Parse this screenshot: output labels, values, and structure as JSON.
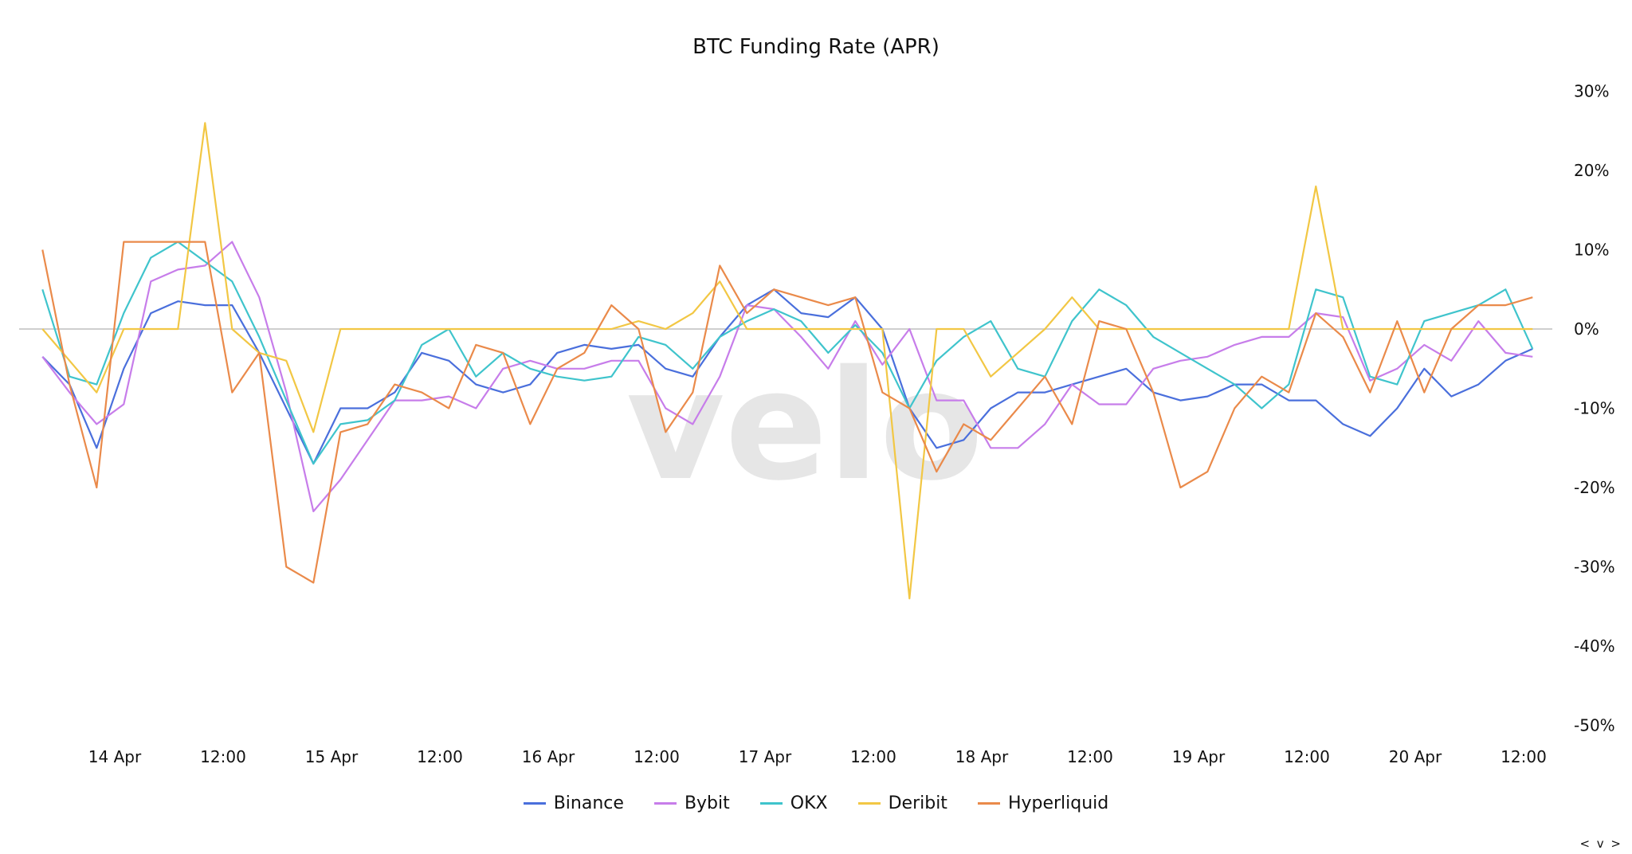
{
  "chart_data": {
    "type": "line",
    "title": "BTC Funding Rate (APR)",
    "watermark": "velo",
    "y_unit": "%",
    "ylim": [
      -50,
      30
    ],
    "y_ticks": [
      "30%",
      "20%",
      "10%",
      "0%",
      "-10%",
      "-20%",
      "-30%",
      "-40%",
      "-50%"
    ],
    "y_tick_values": [
      30,
      20,
      10,
      0,
      -10,
      -20,
      -30,
      -40,
      -50
    ],
    "y_axis_position": "right",
    "x_ticks": [
      {
        "label": "14 Apr",
        "t": "04-14 00:00"
      },
      {
        "label": "12:00",
        "t": "04-14 12:00"
      },
      {
        "label": "15 Apr",
        "t": "04-15 00:00"
      },
      {
        "label": "12:00",
        "t": "04-15 12:00"
      },
      {
        "label": "16 Apr",
        "t": "04-16 00:00"
      },
      {
        "label": "12:00",
        "t": "04-16 12:00"
      },
      {
        "label": "17 Apr",
        "t": "04-17 00:00"
      },
      {
        "label": "12:00",
        "t": "04-17 12:00"
      },
      {
        "label": "18 Apr",
        "t": "04-18 00:00"
      },
      {
        "label": "12:00",
        "t": "04-18 12:00"
      },
      {
        "label": "19 Apr",
        "t": "04-19 00:00"
      },
      {
        "label": "12:00",
        "t": "04-19 12:00"
      },
      {
        "label": "20 Apr",
        "t": "04-20 00:00"
      },
      {
        "label": "12:00",
        "t": "04-20 12:00"
      }
    ],
    "grid": "zero line only",
    "legend_position": "bottom",
    "x": [
      "04-13 16:00",
      "04-13 19:00",
      "04-13 22:00",
      "04-14 01:00",
      "04-14 04:00",
      "04-14 07:00",
      "04-14 10:00",
      "04-14 13:00",
      "04-14 16:00",
      "04-14 19:00",
      "04-14 22:00",
      "04-15 01:00",
      "04-15 04:00",
      "04-15 07:00",
      "04-15 10:00",
      "04-15 13:00",
      "04-15 16:00",
      "04-15 19:00",
      "04-15 22:00",
      "04-16 01:00",
      "04-16 04:00",
      "04-16 07:00",
      "04-16 10:00",
      "04-16 13:00",
      "04-16 16:00",
      "04-16 19:00",
      "04-16 22:00",
      "04-17 01:00",
      "04-17 04:00",
      "04-17 07:00",
      "04-17 10:00",
      "04-17 13:00",
      "04-17 16:00",
      "04-17 19:00",
      "04-17 22:00",
      "04-18 01:00",
      "04-18 04:00",
      "04-18 07:00",
      "04-18 10:00",
      "04-18 13:00",
      "04-18 16:00",
      "04-18 19:00",
      "04-18 22:00",
      "04-19 01:00",
      "04-19 04:00",
      "04-19 07:00",
      "04-19 10:00",
      "04-19 13:00",
      "04-19 16:00",
      "04-19 19:00",
      "04-19 22:00",
      "04-20 01:00",
      "04-20 04:00",
      "04-20 07:00",
      "04-20 10:00",
      "04-20 13:00"
    ],
    "series": [
      {
        "name": "Binance",
        "color": "#4a6fdc",
        "values": [
          -3.5,
          -7,
          -15,
          -5,
          2,
          3.5,
          3,
          3,
          -3,
          -10,
          -17,
          -10,
          -10,
          -8,
          -3,
          -4,
          -7,
          -8,
          -7,
          -3,
          -2,
          -2.5,
          -2,
          -5,
          -6,
          -1,
          3,
          5,
          2,
          1.5,
          4,
          0,
          -10,
          -15,
          -14,
          -10,
          -8,
          -8,
          -7,
          -6,
          -5,
          -8,
          -9,
          -8.5,
          -7,
          -7,
          -9,
          -9,
          -12,
          -13.5,
          -10,
          -5,
          -8.5,
          -7,
          -4,
          -2.5
        ]
      },
      {
        "name": "Bybit",
        "color": "#c77dea",
        "values": [
          -3.5,
          -8,
          -12,
          -9.5,
          6,
          7.5,
          8,
          11,
          4,
          -8,
          -23,
          -19,
          -14,
          -9,
          -9,
          -8.5,
          -10,
          -5,
          -4,
          -5,
          -5,
          -4,
          -4,
          -10,
          -12,
          -6,
          3,
          2.5,
          -1,
          -5,
          1,
          -4.5,
          0,
          -9,
          -9,
          -15,
          -15,
          -12,
          -7,
          -9.5,
          -9.5,
          -5,
          -4,
          -3.5,
          -2,
          -1,
          -1,
          2,
          1.5,
          -6.5,
          -5,
          -2,
          -4,
          1,
          -3,
          -3.5
        ]
      },
      {
        "name": "OKX",
        "color": "#3fc4cc",
        "values": [
          5,
          -6,
          -7,
          2,
          9,
          11,
          8.5,
          6,
          -1,
          -9,
          -17,
          -12,
          -11.5,
          -9,
          -2,
          0,
          -6,
          -3,
          -5,
          -6,
          -6.5,
          -6,
          -1,
          -2,
          -5,
          -1,
          1,
          2.5,
          1,
          -3,
          0.5,
          -3,
          -10,
          -4,
          -1,
          1,
          -5,
          -6,
          1,
          5,
          3,
          -1,
          -3,
          -5,
          -7,
          -10,
          -7,
          5,
          4,
          -6,
          -7,
          1,
          2,
          3,
          5,
          -2.5
        ]
      },
      {
        "name": "Deribit",
        "color": "#f2c744",
        "values": [
          0,
          -4,
          -8,
          0,
          0,
          0,
          26,
          0,
          -3,
          -4,
          -13,
          0,
          0,
          0,
          0,
          0,
          0,
          0,
          0,
          0,
          0,
          0,
          1,
          0,
          2,
          6,
          0,
          0,
          0,
          0,
          0,
          0,
          -34,
          0,
          0,
          -6,
          -3,
          0,
          4,
          0,
          0,
          0,
          0,
          0,
          0,
          0,
          0,
          18,
          0,
          0,
          0,
          0,
          0,
          0,
          0,
          0
        ]
      },
      {
        "name": "Hyperliquid",
        "color": "#ea8a4a",
        "values": [
          10,
          -7,
          -20,
          11,
          11,
          11,
          11,
          -8,
          -3,
          -30,
          -32,
          -13,
          -12,
          -7,
          -8,
          -10,
          -2,
          -3,
          -12,
          -5,
          -3,
          3,
          0,
          -13,
          -8,
          8,
          2,
          5,
          4,
          3,
          4,
          -8,
          -10,
          -18,
          -12,
          -14,
          -10,
          -6,
          -12,
          1,
          0,
          -8,
          -20,
          -18,
          -10,
          -6,
          -8,
          2,
          -1,
          -8,
          1,
          -8,
          0,
          3,
          3,
          4
        ]
      }
    ]
  },
  "nav_label": "< v >"
}
